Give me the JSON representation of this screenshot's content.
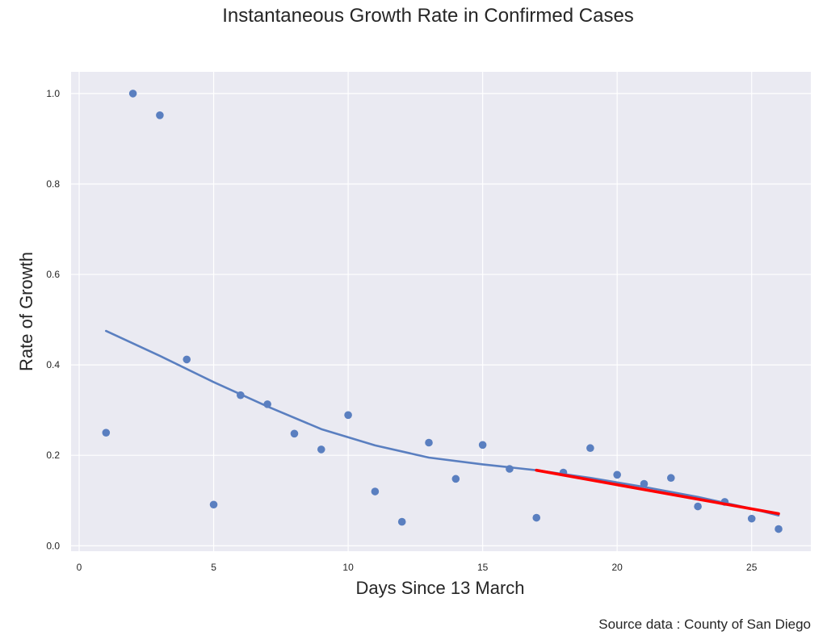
{
  "chart_data": {
    "type": "scatter",
    "title": "Instantaneous Growth Rate in Confirmed Cases",
    "xlabel": "Days Since 13 March",
    "ylabel": "Rate of Growth",
    "source": "Source data : County of San Diego",
    "xlim": [
      -0.3,
      27.2
    ],
    "ylim": [
      -0.012,
      1.048
    ],
    "xticks": [
      0,
      5,
      10,
      15,
      20,
      25
    ],
    "yticks": [
      0.0,
      0.2,
      0.4,
      0.6,
      0.8,
      1.0
    ],
    "xtick_labels": [
      "0",
      "5",
      "10",
      "15",
      "20",
      "25"
    ],
    "ytick_labels": [
      "0.0",
      "0.2",
      "0.4",
      "0.6",
      "0.8",
      "1.0"
    ],
    "grid": true,
    "series": [
      {
        "kind": "points",
        "color": "#5a7fc0",
        "x": [
          1,
          2,
          3,
          4,
          5,
          6,
          7,
          8,
          9,
          10,
          11,
          12,
          13,
          14,
          15,
          16,
          17,
          18,
          19,
          20,
          21,
          22,
          23,
          24,
          25,
          26
        ],
        "y": [
          0.25,
          1.0,
          0.952,
          0.412,
          0.091,
          0.333,
          0.313,
          0.248,
          0.213,
          0.289,
          0.12,
          0.053,
          0.228,
          0.148,
          0.223,
          0.17,
          0.062,
          0.162,
          0.216,
          0.157,
          0.137,
          0.15,
          0.087,
          0.097,
          0.06,
          0.037
        ]
      },
      {
        "kind": "line",
        "color": "#5a7fc0",
        "x": [
          1,
          3,
          5,
          7,
          9,
          11,
          13,
          15,
          17,
          19,
          21,
          23,
          25,
          26
        ],
        "y": [
          0.475,
          0.42,
          0.362,
          0.308,
          0.258,
          0.222,
          0.195,
          0.18,
          0.167,
          0.15,
          0.13,
          0.108,
          0.082,
          0.067
        ]
      },
      {
        "kind": "line",
        "color": "#ff0000",
        "x": [
          17,
          26
        ],
        "y": [
          0.167,
          0.071
        ]
      }
    ]
  },
  "colors": {
    "plot_background": "#eaeaf2",
    "grid": "#ffffff",
    "text": "#262626"
  }
}
